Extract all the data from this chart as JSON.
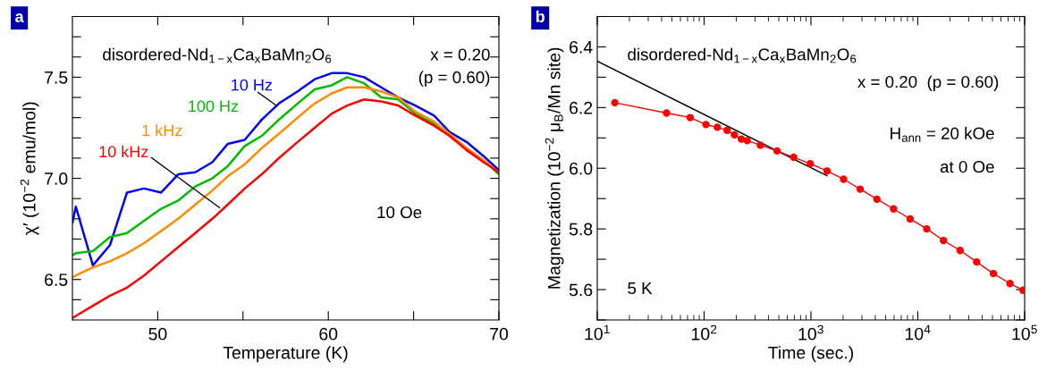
{
  "chart_data": [
    {
      "type": "line",
      "title": "a",
      "xlabel": "Temperature (K)",
      "ylabel": "χ′ (10$^{−2}$ emu/mol)",
      "x": [
        45.0,
        45.2,
        46.2,
        47.2,
        48.2,
        49.2,
        50.2,
        51.2,
        52.2,
        53.2,
        54.1,
        55.1,
        56.1,
        57.1,
        58.2,
        59.2,
        60.2,
        61.1,
        62.1,
        63.1,
        64.1,
        65.1,
        66.2,
        67.1,
        68.1,
        69.1,
        70.0
      ],
      "series": [
        {
          "name": "10 Hz",
          "color": "#0000ff",
          "values": [
            6.78,
            6.86,
            6.57,
            6.67,
            6.93,
            6.95,
            6.93,
            7.02,
            7.03,
            7.08,
            7.17,
            7.19,
            7.29,
            7.37,
            7.43,
            7.49,
            7.52,
            7.52,
            7.5,
            7.45,
            7.4,
            7.36,
            7.31,
            7.23,
            7.18,
            7.11,
            7.04
          ]
        },
        {
          "name": "100 Hz",
          "color": "#00bb00",
          "values": [
            6.62,
            6.63,
            6.64,
            6.71,
            6.73,
            6.79,
            6.85,
            6.89,
            6.96,
            7.0,
            7.06,
            7.16,
            7.21,
            7.29,
            7.37,
            7.44,
            7.46,
            7.5,
            7.47,
            7.4,
            7.39,
            7.32,
            7.27,
            7.22,
            7.14,
            7.09,
            7.02
          ]
        },
        {
          "name": "1 kHz",
          "color": "#ff8c00",
          "values": [
            6.51,
            6.52,
            6.56,
            6.59,
            6.63,
            6.68,
            6.74,
            6.8,
            6.87,
            6.94,
            7.01,
            7.07,
            7.15,
            7.22,
            7.3,
            7.37,
            7.42,
            7.45,
            7.45,
            7.43,
            7.4,
            7.33,
            7.28,
            7.22,
            7.15,
            7.09,
            7.03
          ]
        },
        {
          "name": "10 kHz",
          "color": "#ff0000",
          "values": [
            6.31,
            6.32,
            6.37,
            6.42,
            6.46,
            6.52,
            6.59,
            6.66,
            6.73,
            6.8,
            6.87,
            6.95,
            7.02,
            7.1,
            7.18,
            7.25,
            7.32,
            7.36,
            7.39,
            7.38,
            7.36,
            7.31,
            7.26,
            7.21,
            7.14,
            7.08,
            7.03
          ]
        }
      ],
      "xlim": [
        45,
        70
      ],
      "xticks": [
        50,
        {
          "value": 55,
          "label": null
        },
        60,
        {
          "value": 65,
          "label": null
        },
        70
      ],
      "ylim": [
        6.3,
        7.8
      ],
      "yticks": [
        {
          "value": 6.4,
          "label": null
        },
        6.5,
        {
          "value": 6.6,
          "label": null
        },
        {
          "value": 6.7,
          "label": null
        },
        {
          "value": 6.8,
          "label": null
        },
        {
          "value": 6.9,
          "label": null
        },
        {
          "value": 7.0,
          "label": "7.0"
        },
        {
          "value": 7.1,
          "label": null
        },
        {
          "value": 7.2,
          "label": null
        },
        {
          "value": 7.3,
          "label": null
        },
        {
          "value": 7.4,
          "label": null
        },
        7.5,
        {
          "value": 7.6,
          "label": null
        },
        {
          "value": 7.7,
          "label": null
        }
      ],
      "grid": false,
      "legend": false,
      "marker": "none",
      "line_style": "solid",
      "annotations": [
        "disordered-Nd$_{1−x}$Ca$_{x}$BaMn$_{2}$O$_{6}$",
        "x = 0.20",
        "(p = 0.60)",
        "10 Oe"
      ]
    },
    {
      "type": "line",
      "title": "b",
      "xlabel": "Time (sec.)",
      "ylabel": "Magnetization (10$^{−2}$ μ$_{B}$/Mn site)",
      "log": "x",
      "series": [
        {
          "color": "#ff0000",
          "marker": "circle",
          "x": [
            14.6,
            44.5,
            74,
            104,
            133,
            164,
            192,
            223,
            253,
            336,
            481,
            689,
            986,
            1413,
            2018,
            2891,
            4140,
            5929,
            8472,
            12130,
            17380,
            24890,
            35560,
            50930,
            72950,
            96600
          ],
          "values": [
            6.216,
            6.182,
            6.167,
            6.144,
            6.135,
            6.125,
            6.11,
            6.096,
            6.091,
            6.076,
            6.057,
            6.036,
            6.015,
            5.991,
            5.964,
            5.931,
            5.898,
            5.866,
            5.833,
            5.8,
            5.762,
            5.729,
            5.691,
            5.653,
            5.62,
            5.598
          ]
        },
        {
          "color": "#000000",
          "marker": "none",
          "x": [
            10,
            1413
          ],
          "values": [
            6.353,
            5.975
          ]
        }
      ],
      "xlim": [
        10,
        100000
      ],
      "xticks": [
        {
          "value": 10,
          "label": "10$^{1}$"
        },
        {
          "value": 100,
          "label": "10$^{2}$"
        },
        {
          "value": 1000,
          "label": "10$^{3}$"
        },
        {
          "value": 10000,
          "label": "10$^{4}$"
        },
        {
          "value": 100000,
          "label": "10$^{5}$"
        }
      ],
      "ylim": [
        5.5,
        6.5
      ],
      "yticks": [
        {
          "value": 5.5,
          "label": null
        },
        5.6,
        {
          "value": 5.7,
          "label": null
        },
        5.8,
        {
          "value": 5.9,
          "label": null
        },
        {
          "value": 6.0,
          "label": "6.0"
        },
        {
          "value": 6.1,
          "label": null
        },
        6.2,
        {
          "value": 6.3,
          "label": null
        },
        6.4,
        {
          "value": 6.5,
          "label": null
        }
      ],
      "grid": false,
      "legend": false,
      "line_style": "solid",
      "annotations": [
        "disordered-Nd$_{1−x}$Ca$_{x}$BaMn$_{2}$O$_{6}$",
        "x = 0.20  (p = 0.60)",
        "H$_{ann}$ = 20 kOe",
        "at 0 Oe",
        "5 K"
      ]
    }
  ]
}
